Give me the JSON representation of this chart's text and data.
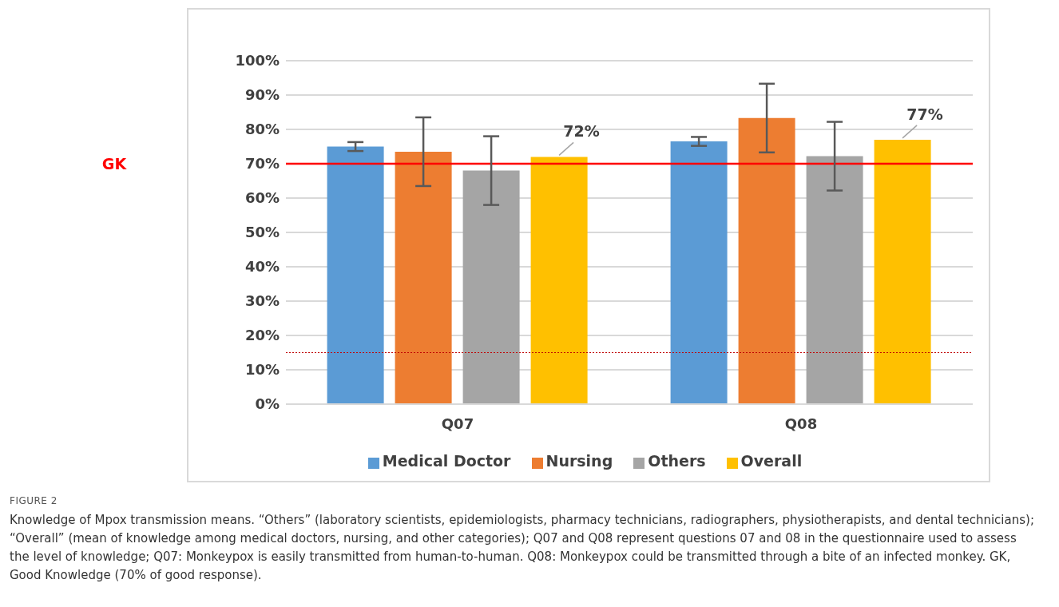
{
  "chart_data": {
    "type": "bar",
    "categories": [
      "Q07",
      "Q08"
    ],
    "series": [
      {
        "name": "Medical Doctor",
        "color": "#5b9bd5",
        "values": [
          75,
          76.5
        ],
        "errors": [
          1.3,
          1.3
        ]
      },
      {
        "name": "Nursing",
        "color": "#ed7d31",
        "values": [
          73.5,
          83.3
        ],
        "errors": [
          10,
          10
        ]
      },
      {
        "name": "Others",
        "color": "#a5a5a5",
        "values": [
          68,
          72.2
        ],
        "errors": [
          10,
          10
        ]
      },
      {
        "name": "Overall",
        "color": "#ffc000",
        "values": [
          72,
          77
        ],
        "value_labels": [
          "72%",
          "77%"
        ]
      }
    ],
    "ylim": [
      0,
      100
    ],
    "yticks": [
      {
        "value": 0,
        "label": "0%"
      },
      {
        "value": 10,
        "label": "10%"
      },
      {
        "value": 20,
        "label": "20%"
      },
      {
        "value": 30,
        "label": "30%"
      },
      {
        "value": 40,
        "label": "40%"
      },
      {
        "value": 50,
        "label": "50%"
      },
      {
        "value": 60,
        "label": "60%"
      },
      {
        "value": 70,
        "label": "70%"
      },
      {
        "value": 80,
        "label": "80%"
      },
      {
        "value": 90,
        "label": "90%"
      },
      {
        "value": 100,
        "label": "100%"
      }
    ],
    "grid": "y",
    "legend": "bottom",
    "ref_lines": [
      {
        "axis": "y",
        "value": 70,
        "label": "GK",
        "color": "#ff0000",
        "line_style": "solid"
      },
      {
        "axis": "y",
        "value": 15,
        "color": "#c00000",
        "line_style": "dotted"
      }
    ],
    "annotations": [
      "FIGURE 2",
      "Knowledge of Mpox transmission means. “Others” (laboratory scientists, epidemiologists, pharmacy technicians, radiographers, physiotherapists, and dental technicians); “Overall” (mean of knowledge among medical doctors, nursing, and other categories); Q07 and Q08 represent questions 07 and 08 in the questionnaire used to assess the level of knowledge; Q07: Monkeypox is easily transmitted from human-to-human. Q08: Monkeypox could be transmitted through a bite of an infected monkey. GK, Good Knowledge (70% of good response)."
    ]
  }
}
